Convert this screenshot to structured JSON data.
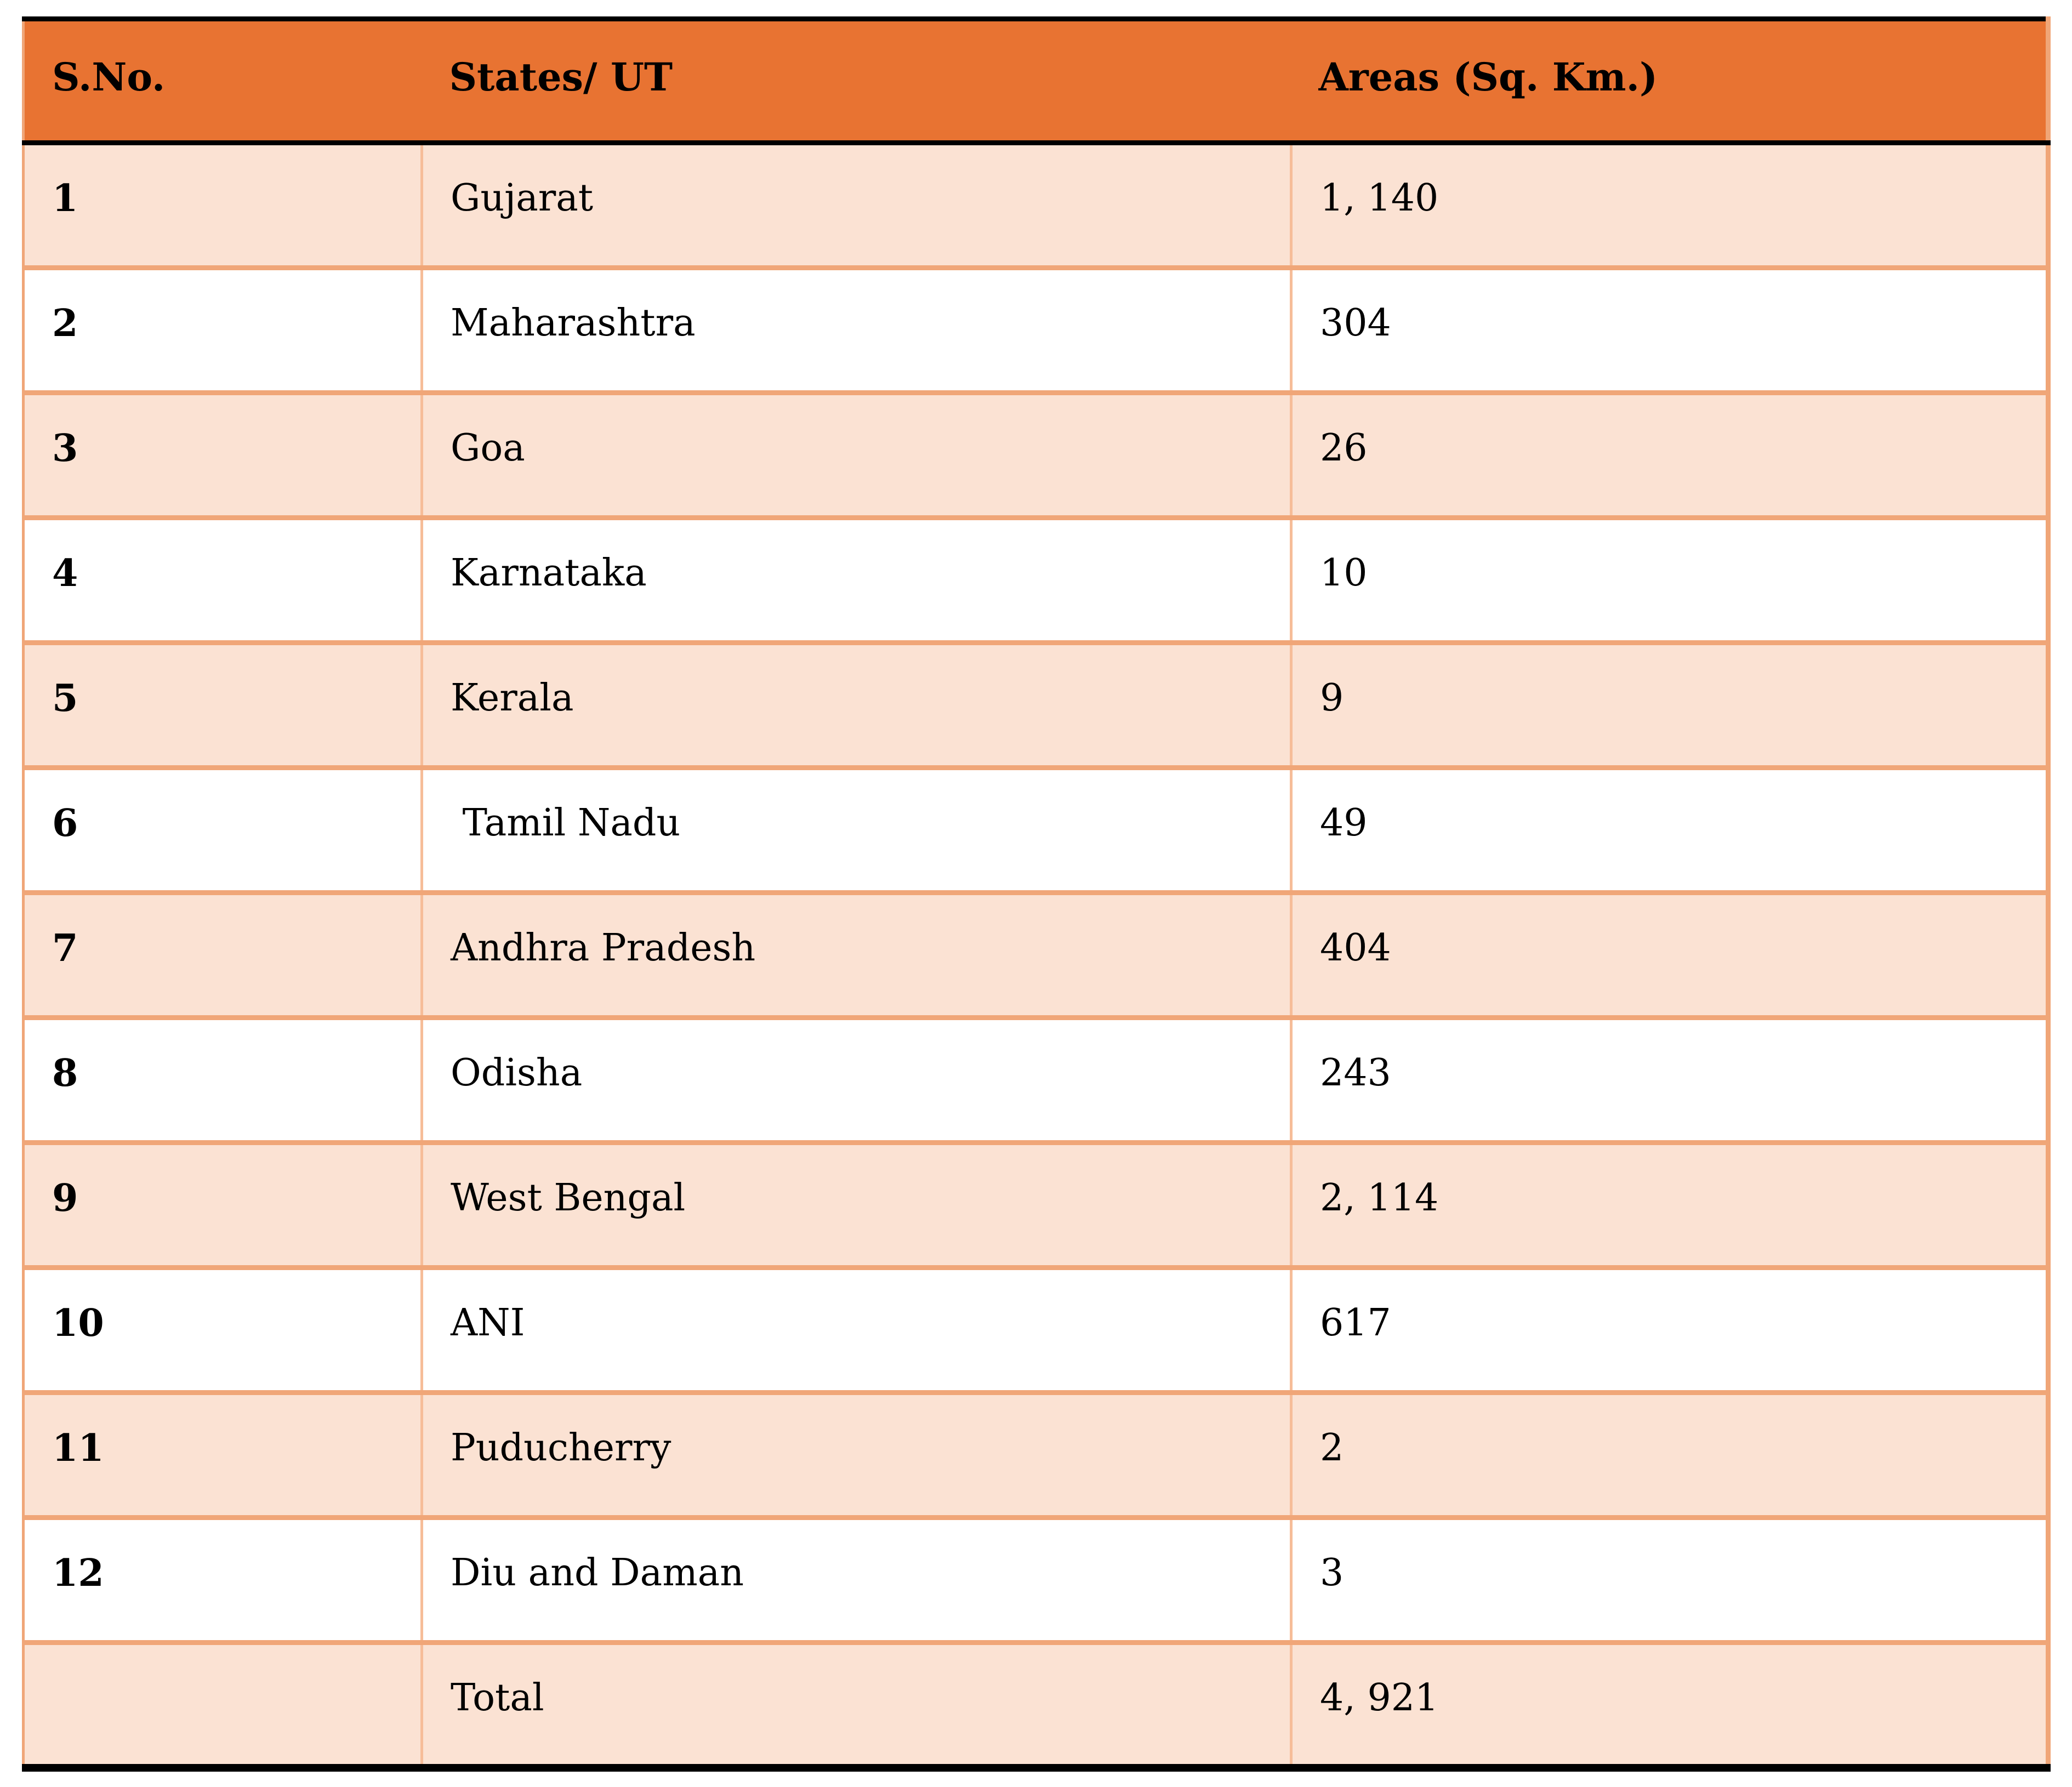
{
  "table": {
    "columns": [
      {
        "key": "sno",
        "label": "S.No."
      },
      {
        "key": "state",
        "label": "States/ UT"
      },
      {
        "key": "area",
        "label": "Areas (Sq. Km.)"
      }
    ],
    "rows": [
      {
        "sno": "1",
        "state": "Gujarat",
        "area": "1, 140"
      },
      {
        "sno": "2",
        "state": "Maharashtra",
        "area": "304"
      },
      {
        "sno": "3",
        "state": "Goa",
        "area": "26"
      },
      {
        "sno": "4",
        "state": "Karnataka",
        "area": "10"
      },
      {
        "sno": "5",
        "state": "Kerala",
        "area": "9"
      },
      {
        "sno": "6",
        "state": " Tamil Nadu",
        "area": "49"
      },
      {
        "sno": "7",
        "state": "Andhra Pradesh",
        "area": "404"
      },
      {
        "sno": "8",
        "state": "Odisha",
        "area": "243"
      },
      {
        "sno": "9",
        "state": "West Bengal",
        "area": "2, 114"
      },
      {
        "sno": "10",
        "state": "ANI",
        "area": "617"
      },
      {
        "sno": "11",
        "state": "Puducherry",
        "area": "2"
      },
      {
        "sno": "12",
        "state": "Diu and Daman",
        "area": "3"
      }
    ],
    "total_row": {
      "sno": "",
      "state": "Total",
      "area": "4, 921"
    },
    "colors": {
      "header_bg": "#E87332",
      "band_bg": "#FBE2D3",
      "row_border": "#F0A678",
      "col_border": "#F6BD99",
      "frame_border": "#000000",
      "text": "#000000"
    }
  }
}
